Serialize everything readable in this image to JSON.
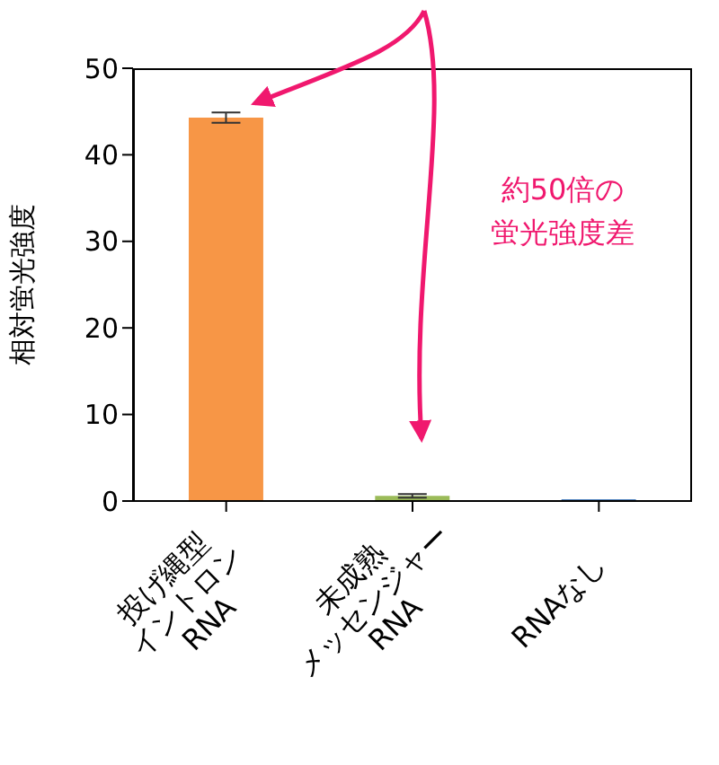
{
  "chart_data": {
    "type": "bar",
    "ylabel": "相対蛍光強度",
    "categories": [
      "投げ縄型\nイントロン\nRNA",
      "未成熟\nメッセンジャー\nRNA",
      "RNAなし"
    ],
    "values": [
      44.3,
      0.6,
      0.2
    ],
    "errors": [
      0.6,
      0.2,
      null
    ],
    "colors": [
      "#f79646",
      "#9bbb59",
      "#4f81bd"
    ],
    "ylim": [
      0,
      50
    ],
    "yticks": [
      0,
      10,
      20,
      30,
      40,
      50
    ],
    "annotations": [
      "約50倍の蛍光強度差"
    ]
  }
}
